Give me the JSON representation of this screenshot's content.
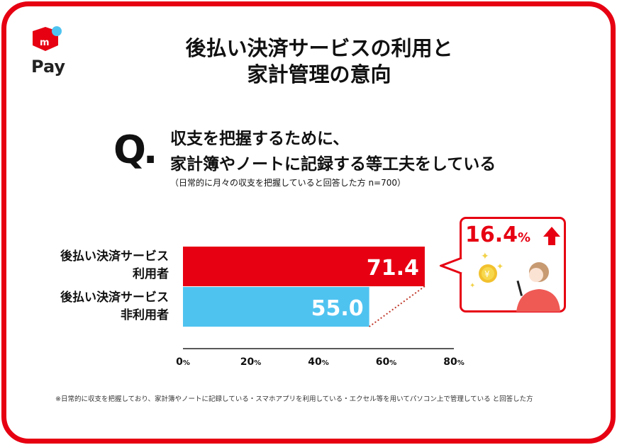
{
  "brand": {
    "logo_text": "Pay",
    "logo_letter": "m",
    "colors": {
      "red": "#e60012",
      "blue": "#4fc3f0"
    }
  },
  "title": {
    "line1": "後払い決済サービスの利用と",
    "line2": "家計管理の意向"
  },
  "question": {
    "mark": "Q.",
    "line1": "収支を把握するために、",
    "line2": "家計簿やノートに記録する等工夫をしている",
    "sub": "（日常的に月々の収支を把握していると回答した方 n=700）"
  },
  "chart_data": {
    "type": "bar",
    "orientation": "horizontal",
    "categories": [
      [
        "後払い決済サービス",
        "利用者"
      ],
      [
        "後払い決済サービス",
        "非利用者"
      ]
    ],
    "values": [
      71.4,
      55.0
    ],
    "value_labels": [
      "71.4",
      "55.0"
    ],
    "colors": [
      "#e60012",
      "#4fc3f0"
    ],
    "xlim": [
      0,
      80
    ],
    "ticks": [
      {
        "v": 0,
        "label": "0",
        "unit": "%"
      },
      {
        "v": 20,
        "label": "20",
        "unit": "%"
      },
      {
        "v": 40,
        "label": "40",
        "unit": "%"
      },
      {
        "v": 60,
        "label": "60",
        "unit": "%"
      },
      {
        "v": 80,
        "label": "80",
        "unit": "%"
      }
    ],
    "grid": false
  },
  "callout": {
    "value": "16.4",
    "unit": "%",
    "icon": "arrow-up-icon",
    "illustration": "woman-with-phone-and-yen-coin"
  },
  "footnote": "※日常的に収支を把握しており、家計簿やノートに記録している・スマホアプリを利用している・エクセル等を用いてパソコン上で管理している と回答した方"
}
